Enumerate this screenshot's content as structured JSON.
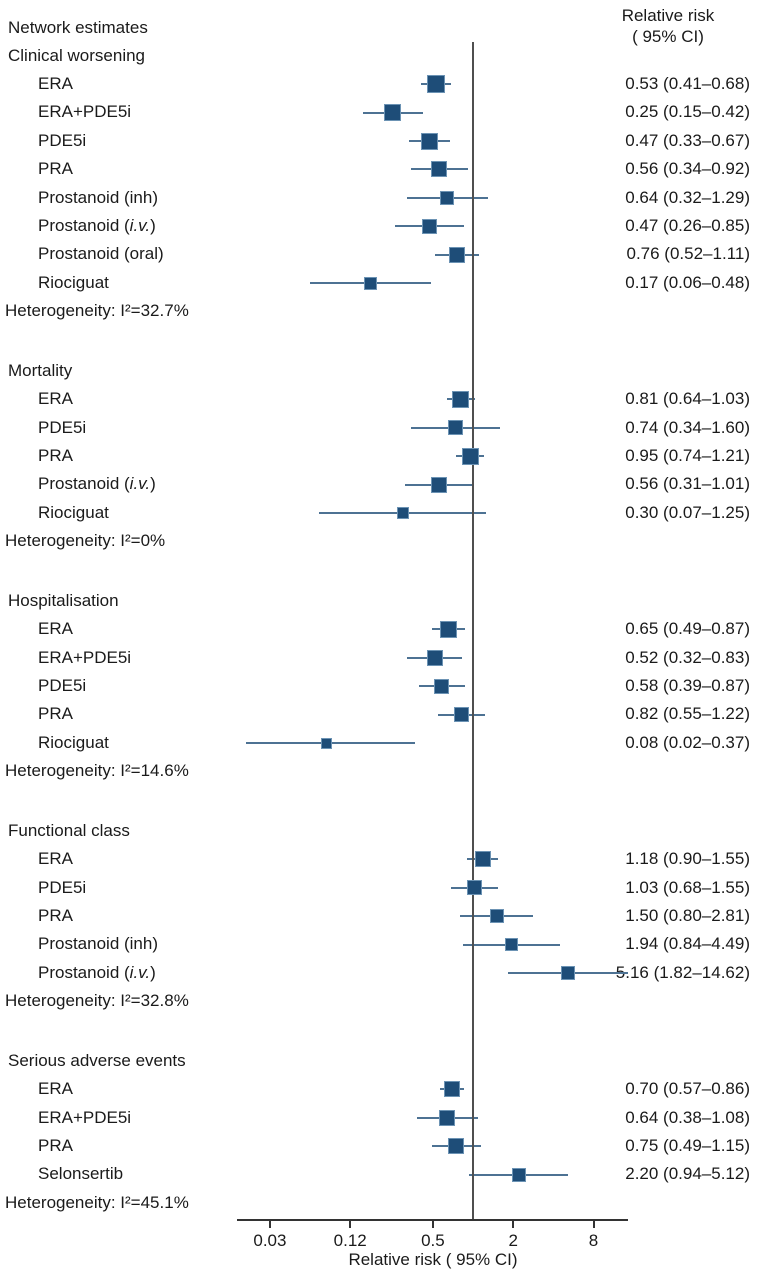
{
  "chart_data": {
    "type": "forest",
    "title": "Network estimates",
    "column_header": {
      "line1": "Relative risk",
      "line2": "( 95% CI)"
    },
    "xlabel": "Relative risk ( 95% CI)",
    "x_scale": "log",
    "x_ticks": [
      0.03,
      0.12,
      0.5,
      2,
      8
    ],
    "x_tick_labels": [
      "0.03",
      "0.12",
      "0.5",
      "2",
      "8"
    ],
    "x_range": [
      0.017,
      14.5
    ],
    "reference_line": 1,
    "legend_position": "none",
    "grid": false,
    "colors": {
      "marker": "#1e4d78",
      "marker_edge": "#6c93b4",
      "ci_line": "#4d7293",
      "reference_line": "#4f4f4f",
      "axis": "#333333",
      "text": "#1a1a1a"
    },
    "sections": [
      {
        "title": "Clinical worsening",
        "heterogeneity": "Heterogeneity: I²=32.7%",
        "rows": [
          {
            "label": "ERA",
            "rr": 0.53,
            "ci_low": 0.41,
            "ci_high": 0.68,
            "display": "0.53 (0.41–0.68)",
            "marker_size": 18
          },
          {
            "label": "ERA+PDE5i",
            "rr": 0.25,
            "ci_low": 0.15,
            "ci_high": 0.42,
            "display": "0.25 (0.15–0.42)",
            "marker_size": 17
          },
          {
            "label": "PDE5i",
            "rr": 0.47,
            "ci_low": 0.33,
            "ci_high": 0.67,
            "display": "0.47 (0.33–0.67)",
            "marker_size": 17
          },
          {
            "label": "PRA",
            "rr": 0.56,
            "ci_low": 0.34,
            "ci_high": 0.92,
            "display": "0.56 (0.34–0.92)",
            "marker_size": 16
          },
          {
            "label": "Prostanoid (inh)",
            "rr": 0.64,
            "ci_low": 0.32,
            "ci_high": 1.29,
            "display": "0.64 (0.32–1.29)",
            "marker_size": 14
          },
          {
            "label": "Prostanoid (i.v.)",
            "rr": 0.47,
            "ci_low": 0.26,
            "ci_high": 0.85,
            "display": "0.47 (0.26–0.85)",
            "marker_size": 15
          },
          {
            "label": "Prostanoid (oral)",
            "rr": 0.76,
            "ci_low": 0.52,
            "ci_high": 1.11,
            "display": "0.76 (0.52–1.11)",
            "marker_size": 16
          },
          {
            "label": "Riociguat",
            "rr": 0.17,
            "ci_low": 0.06,
            "ci_high": 0.48,
            "display": "0.17 (0.06–0.48)",
            "marker_size": 13
          }
        ]
      },
      {
        "title": "Mortality",
        "heterogeneity": "Heterogeneity: I²=0%",
        "rows": [
          {
            "label": "ERA",
            "rr": 0.81,
            "ci_low": 0.64,
            "ci_high": 1.03,
            "display": "0.81 (0.64–1.03)",
            "marker_size": 17
          },
          {
            "label": "PDE5i",
            "rr": 0.74,
            "ci_low": 0.34,
            "ci_high": 1.6,
            "display": "0.74 (0.34–1.60)",
            "marker_size": 15
          },
          {
            "label": "PRA",
            "rr": 0.95,
            "ci_low": 0.74,
            "ci_high": 1.21,
            "display": "0.95 (0.74–1.21)",
            "marker_size": 17
          },
          {
            "label": "Prostanoid (i.v.)",
            "rr": 0.56,
            "ci_low": 0.31,
            "ci_high": 1.01,
            "display": "0.56 (0.31–1.01)",
            "marker_size": 16
          },
          {
            "label": "Riociguat",
            "rr": 0.3,
            "ci_low": 0.07,
            "ci_high": 1.25,
            "display": "0.30 (0.07–1.25)",
            "marker_size": 12
          }
        ]
      },
      {
        "title": "Hospitalisation",
        "heterogeneity": "Heterogeneity: I²=14.6%",
        "rows": [
          {
            "label": "ERA",
            "rr": 0.65,
            "ci_low": 0.49,
            "ci_high": 0.87,
            "display": "0.65 (0.49–0.87)",
            "marker_size": 17
          },
          {
            "label": "ERA+PDE5i",
            "rr": 0.52,
            "ci_low": 0.32,
            "ci_high": 0.83,
            "display": "0.52 (0.32–0.83)",
            "marker_size": 16
          },
          {
            "label": "PDE5i",
            "rr": 0.58,
            "ci_low": 0.39,
            "ci_high": 0.87,
            "display": "0.58 (0.39–0.87)",
            "marker_size": 15
          },
          {
            "label": "PRA",
            "rr": 0.82,
            "ci_low": 0.55,
            "ci_high": 1.22,
            "display": "0.82 (0.55–1.22)",
            "marker_size": 15
          },
          {
            "label": "Riociguat",
            "rr": 0.08,
            "ci_low": 0.02,
            "ci_high": 0.37,
            "display": "0.08 (0.02–0.37)",
            "marker_size": 11
          }
        ]
      },
      {
        "title": "Functional class",
        "heterogeneity": "Heterogeneity: I²=32.8%",
        "rows": [
          {
            "label": "ERA",
            "rr": 1.18,
            "ci_low": 0.9,
            "ci_high": 1.55,
            "display": "1.18 (0.90–1.55)",
            "marker_size": 16
          },
          {
            "label": "PDE5i",
            "rr": 1.03,
            "ci_low": 0.68,
            "ci_high": 1.55,
            "display": "1.03 (0.68–1.55)",
            "marker_size": 15
          },
          {
            "label": "PRA",
            "rr": 1.5,
            "ci_low": 0.8,
            "ci_high": 2.81,
            "display": "1.50 (0.80–2.81)",
            "marker_size": 14
          },
          {
            "label": "Prostanoid (inh)",
            "rr": 1.94,
            "ci_low": 0.84,
            "ci_high": 4.49,
            "display": "1.94 (0.84–4.49)",
            "marker_size": 13
          },
          {
            "label": "Prostanoid (i.v.)",
            "rr": 5.16,
            "ci_low": 1.82,
            "ci_high": 14.62,
            "display": "5.16 (1.82–14.62)",
            "marker_size": 14
          }
        ]
      },
      {
        "title": "Serious adverse events",
        "heterogeneity": "Heterogeneity: I²=45.1%",
        "rows": [
          {
            "label": "ERA",
            "rr": 0.7,
            "ci_low": 0.57,
            "ci_high": 0.86,
            "display": "0.70 (0.57–0.86)",
            "marker_size": 16
          },
          {
            "label": "ERA+PDE5i",
            "rr": 0.64,
            "ci_low": 0.38,
            "ci_high": 1.08,
            "display": "0.64 (0.38–1.08)",
            "marker_size": 16
          },
          {
            "label": "PRA",
            "rr": 0.75,
            "ci_low": 0.49,
            "ci_high": 1.15,
            "display": "0.75 (0.49–1.15)",
            "marker_size": 16
          },
          {
            "label": "Selonsertib",
            "rr": 2.2,
            "ci_low": 0.94,
            "ci_high": 5.12,
            "display": "2.20 (0.94–5.12)",
            "marker_size": 14
          }
        ]
      }
    ]
  }
}
